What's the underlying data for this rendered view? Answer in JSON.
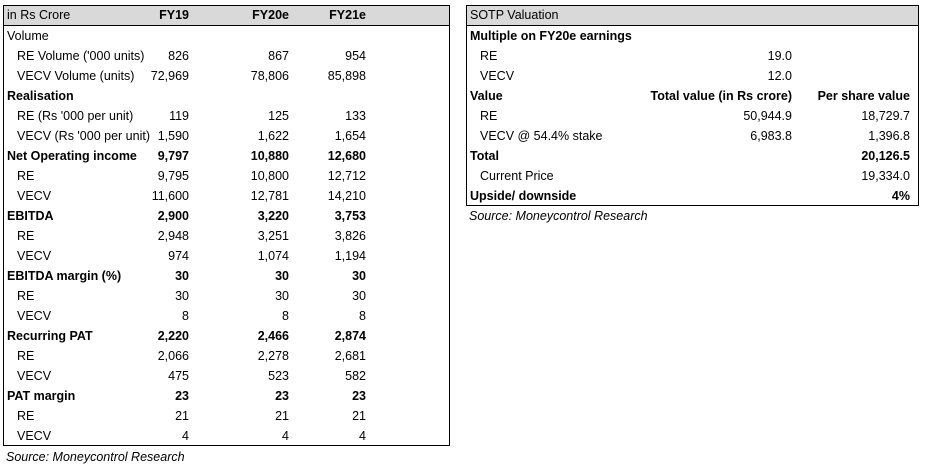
{
  "left_table": {
    "header": [
      "in Rs Crore",
      "FY19",
      "FY20e",
      "FY21e"
    ],
    "rows": [
      {
        "cells": [
          "Volume",
          null,
          null,
          null
        ]
      },
      {
        "cells": [
          "RE Volume ('000 units)",
          "826",
          "867",
          "954"
        ],
        "indent": true
      },
      {
        "cells": [
          "VECV Volume (units)",
          "72,969",
          "78,806",
          "85,898"
        ],
        "indent": true
      },
      {
        "cells": [
          "Realisation",
          null,
          null,
          null
        ],
        "bold": true
      },
      {
        "cells": [
          "RE (Rs '000 per unit)",
          "119",
          "125",
          "133"
        ],
        "indent": true
      },
      {
        "cells": [
          "VECV (Rs '000 per unit)",
          "1,590",
          "1,622",
          "1,654"
        ],
        "indent": true
      },
      {
        "cells": [
          "Net Operating income",
          "9,797",
          "10,880",
          "12,680"
        ],
        "bold": true
      },
      {
        "cells": [
          "RE",
          "9,795",
          "10,800",
          "12,712"
        ],
        "indent": true
      },
      {
        "cells": [
          "VECV",
          "11,600",
          "12,781",
          "14,210"
        ],
        "indent": true
      },
      {
        "cells": [
          "EBITDA",
          "2,900",
          "3,220",
          "3,753"
        ],
        "bold": true
      },
      {
        "cells": [
          "RE",
          "2,948",
          "3,251",
          "3,826"
        ],
        "indent": true
      },
      {
        "cells": [
          "VECV",
          "974",
          "1,074",
          "1,194"
        ],
        "indent": true
      },
      {
        "cells": [
          "EBITDA margin (%)",
          "30",
          "30",
          "30"
        ],
        "bold": true
      },
      {
        "cells": [
          "RE",
          "30",
          "30",
          "30"
        ],
        "indent": true
      },
      {
        "cells": [
          "VECV",
          "8",
          "8",
          "8"
        ],
        "indent": true
      },
      {
        "cells": [
          "Recurring PAT",
          "2,220",
          "2,466",
          "2,874"
        ],
        "bold": true
      },
      {
        "cells": [
          "RE",
          "2,066",
          "2,278",
          "2,681"
        ],
        "indent": true
      },
      {
        "cells": [
          "VECV",
          "475",
          "523",
          "582"
        ],
        "indent": true
      },
      {
        "cells": [
          "PAT margin",
          "23",
          "23",
          "23"
        ],
        "bold": true
      },
      {
        "cells": [
          "RE",
          "21",
          "21",
          "21"
        ],
        "indent": true
      },
      {
        "cells": [
          "VECV",
          "4",
          "4",
          "4"
        ],
        "indent": true
      }
    ],
    "source": "Source: Moneycontrol Research"
  },
  "right_table": {
    "header": "SOTP Valuation",
    "rows": [
      {
        "cells": [
          "Multiple on FY20e earnings",
          null,
          null
        ],
        "bold": true
      },
      {
        "cells": [
          "RE",
          "19.0",
          null
        ],
        "indent": true
      },
      {
        "cells": [
          "VECV",
          "12.0",
          null
        ],
        "indent": true
      },
      {
        "cells": [
          "Value",
          "Total value (in Rs crore)",
          "Per share value"
        ],
        "bold": true
      },
      {
        "cells": [
          "RE",
          "50,944.9",
          "18,729.7"
        ],
        "indent": true
      },
      {
        "cells": [
          "VECV @ 54.4% stake",
          "6,983.8",
          "1,396.8"
        ],
        "indent": true
      },
      {
        "cells": [
          "Total",
          null,
          "20,126.5"
        ],
        "bold": true
      },
      {
        "cells": [
          "Current Price",
          null,
          "19,334.0"
        ],
        "indent": true
      },
      {
        "cells": [
          "Upside/ downside",
          null,
          "4%"
        ],
        "bold": true
      }
    ],
    "source": "Source: Moneycontrol Research"
  }
}
